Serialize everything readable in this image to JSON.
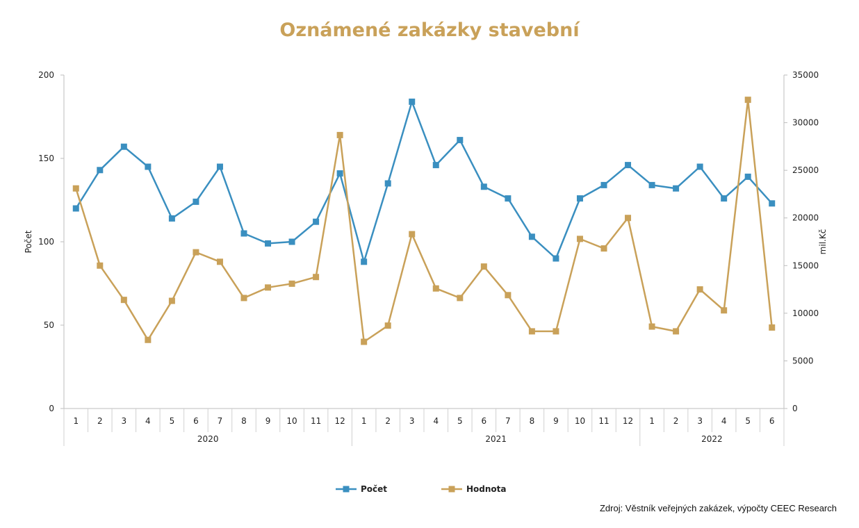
{
  "chart_data": {
    "type": "line",
    "title": "Oznámené zakázky stavební",
    "ylabel_left": "Počet",
    "ylabel_right": "mil.Kč",
    "ylim_left": [
      0,
      200
    ],
    "ylim_right": [
      0,
      35000
    ],
    "yticks_left": [
      "0",
      "50",
      "100",
      "150",
      "200"
    ],
    "yticks_right": [
      "0",
      "5000",
      "10000",
      "15000",
      "20000",
      "25000",
      "30000",
      "35000"
    ],
    "categories": [
      "1",
      "2",
      "3",
      "4",
      "5",
      "6",
      "7",
      "8",
      "9",
      "10",
      "11",
      "12",
      "1",
      "2",
      "3",
      "4",
      "5",
      "6",
      "7",
      "8",
      "9",
      "10",
      "11",
      "12",
      "1",
      "2",
      "3",
      "4",
      "5",
      "6"
    ],
    "groups": [
      {
        "label": "2020",
        "count": 12
      },
      {
        "label": "2021",
        "count": 12
      },
      {
        "label": "2022",
        "count": 6
      }
    ],
    "series": [
      {
        "name": "Počet",
        "axis": "left",
        "color": "#3a8fc0",
        "values": [
          120,
          143,
          157,
          145,
          114,
          124,
          145,
          105,
          99,
          100,
          112,
          141,
          88,
          135,
          184,
          146,
          161,
          133,
          126,
          103,
          90,
          126,
          134,
          146,
          134,
          132,
          145,
          126,
          139,
          123
        ]
      },
      {
        "name": "Hodnota",
        "axis": "right",
        "color": "#c9a159",
        "values": [
          23100,
          15000,
          11400,
          7200,
          11300,
          16400,
          15400,
          11600,
          12700,
          13100,
          13800,
          28700,
          7000,
          8700,
          18300,
          12600,
          11600,
          14900,
          11900,
          8100,
          8100,
          17800,
          16800,
          20000,
          8600,
          8100,
          12500,
          10300,
          32400,
          8500
        ]
      }
    ],
    "legend_position": "bottom-center",
    "title_color": "#c9a159"
  },
  "source_text": "Zdroj: Věstník veřejných zakázek, výpočty CEEC Research"
}
